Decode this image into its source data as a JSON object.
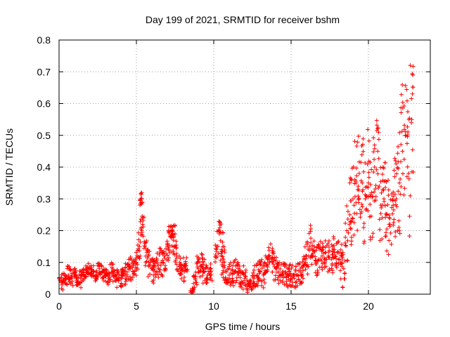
{
  "chart_data": {
    "type": "scatter",
    "title": "Day 199 of 2021, SRMTID for receiver bshm",
    "xlabel": "GPS time / hours",
    "ylabel": "SRMTID / TECUs",
    "xlim": [
      0,
      24
    ],
    "ylim": [
      0,
      0.8
    ],
    "xticks": [
      0,
      5,
      10,
      15,
      20
    ],
    "xtick_labels": [
      "0",
      "5",
      "10",
      "15",
      "20"
    ],
    "yticks": [
      0,
      0.1,
      0.2,
      0.3,
      0.4,
      0.5,
      0.6,
      0.7,
      0.8
    ],
    "ytick_labels": [
      "0",
      "0.1",
      "0.2",
      "0.3",
      "0.4",
      "0.5",
      "0.6",
      "0.7",
      "0.8"
    ],
    "grid": true,
    "marker": "+",
    "marker_color": "#ff0000",
    "series": [
      {
        "name": "SRMTID",
        "x": [
          0.0,
          0.2,
          0.4,
          0.6,
          0.8,
          1.0,
          1.2,
          1.4,
          1.6,
          1.8,
          2.0,
          2.2,
          2.4,
          2.6,
          2.8,
          3.0,
          3.2,
          3.4,
          3.6,
          3.8,
          4.0,
          4.2,
          4.4,
          4.6,
          4.8,
          5.0,
          5.2,
          5.3,
          5.4,
          5.6,
          5.8,
          6.0,
          6.2,
          6.4,
          6.6,
          6.8,
          7.0,
          7.2,
          7.3,
          7.4,
          7.6,
          7.8,
          8.0,
          8.2,
          8.6,
          8.8,
          9.0,
          9.2,
          9.4,
          9.6,
          9.8,
          10.2,
          10.4,
          10.5,
          10.6,
          10.8,
          11.0,
          11.2,
          11.4,
          11.6,
          11.8,
          12.0,
          12.2,
          12.4,
          12.6,
          12.8,
          13.0,
          13.2,
          13.4,
          13.6,
          13.8,
          14.0,
          14.2,
          14.4,
          14.6,
          14.8,
          15.0,
          15.2,
          15.4,
          15.6,
          15.8,
          16.0,
          16.2,
          16.4,
          16.6,
          16.8,
          17.0,
          17.2,
          17.4,
          17.6,
          17.8,
          18.0,
          18.2,
          18.4,
          18.6,
          18.8,
          19.0,
          19.2,
          19.4,
          19.6,
          19.8,
          20.0,
          20.2,
          20.4,
          20.6,
          20.8,
          21.0,
          21.2,
          21.4,
          21.6,
          21.8,
          22.0,
          22.2,
          22.4,
          22.6,
          22.8
        ],
        "y": [
          0.05,
          0.04,
          0.05,
          0.06,
          0.05,
          0.07,
          0.04,
          0.05,
          0.06,
          0.07,
          0.08,
          0.07,
          0.06,
          0.08,
          0.07,
          0.06,
          0.05,
          0.07,
          0.06,
          0.05,
          0.05,
          0.06,
          0.07,
          0.08,
          0.09,
          0.1,
          0.15,
          0.3,
          0.22,
          0.12,
          0.1,
          0.08,
          0.07,
          0.09,
          0.1,
          0.12,
          0.15,
          0.18,
          0.2,
          0.17,
          0.12,
          0.1,
          0.08,
          0.09,
          0.01,
          0.05,
          0.08,
          0.09,
          0.07,
          0.06,
          0.07,
          0.15,
          0.21,
          0.14,
          0.1,
          0.07,
          0.06,
          0.05,
          0.07,
          0.06,
          0.04,
          0.05,
          0.03,
          0.04,
          0.05,
          0.06,
          0.07,
          0.06,
          0.09,
          0.12,
          0.1,
          0.08,
          0.07,
          0.06,
          0.07,
          0.06,
          0.06,
          0.05,
          0.06,
          0.07,
          0.09,
          0.12,
          0.15,
          0.12,
          0.1,
          0.11,
          0.12,
          0.13,
          0.12,
          0.11,
          0.14,
          0.13,
          0.1,
          0.08,
          0.2,
          0.25,
          0.3,
          0.35,
          0.38,
          0.35,
          0.3,
          0.35,
          0.32,
          0.4,
          0.45,
          0.28,
          0.3,
          0.25,
          0.22,
          0.28,
          0.3,
          0.35,
          0.45,
          0.5,
          0.38,
          0.55
        ],
        "scatter_band": [
          0.03,
          0.03,
          0.02,
          0.03,
          0.03,
          0.02,
          0.02,
          0.03,
          0.02,
          0.02,
          0.02,
          0.02,
          0.02,
          0.02,
          0.02,
          0.02,
          0.02,
          0.03,
          0.02,
          0.03,
          0.03,
          0.03,
          0.03,
          0.04,
          0.04,
          0.05,
          0.08,
          0.02,
          0.05,
          0.05,
          0.05,
          0.04,
          0.04,
          0.04,
          0.05,
          0.05,
          0.05,
          0.05,
          0.02,
          0.05,
          0.05,
          0.04,
          0.04,
          0.03,
          0.01,
          0.03,
          0.04,
          0.04,
          0.04,
          0.03,
          0.03,
          0.05,
          0.02,
          0.06,
          0.05,
          0.04,
          0.04,
          0.04,
          0.04,
          0.04,
          0.03,
          0.04,
          0.03,
          0.03,
          0.04,
          0.04,
          0.04,
          0.04,
          0.05,
          0.05,
          0.05,
          0.04,
          0.04,
          0.04,
          0.04,
          0.04,
          0.04,
          0.03,
          0.04,
          0.04,
          0.04,
          0.06,
          0.07,
          0.05,
          0.05,
          0.05,
          0.05,
          0.05,
          0.05,
          0.05,
          0.05,
          0.05,
          0.06,
          0.06,
          0.1,
          0.12,
          0.14,
          0.15,
          0.14,
          0.15,
          0.15,
          0.18,
          0.16,
          0.12,
          0.12,
          0.12,
          0.12,
          0.12,
          0.1,
          0.12,
          0.14,
          0.16,
          0.22,
          0.22,
          0.2,
          0.18
        ]
      }
    ]
  }
}
